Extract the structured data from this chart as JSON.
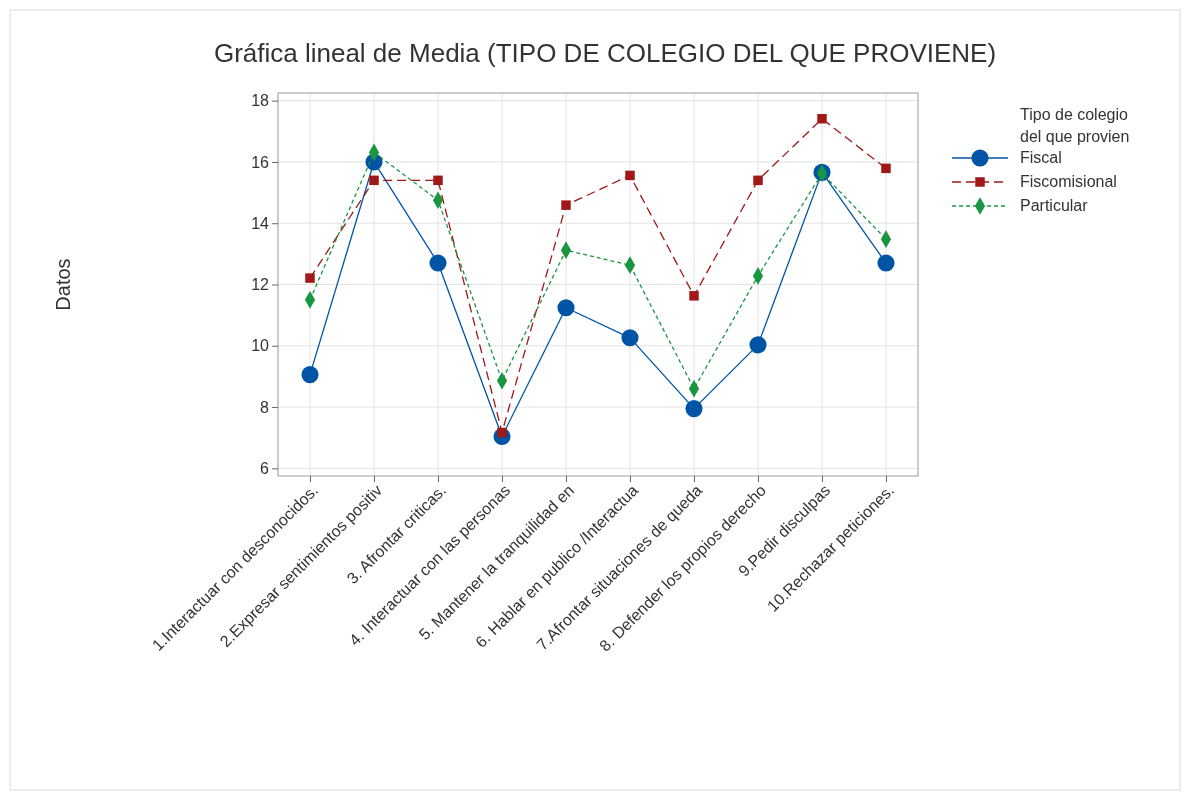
{
  "chart_data": {
    "type": "line",
    "title": "Gráfica lineal de Media (TIPO DE COLEGIO DEL QUE PROVIENE)",
    "ylabel": "Datos",
    "legend_title": "Tipo de colegio del que provien",
    "categories": [
      "1.Interactuar con desconocidos.",
      "2.Expresar sentimientos positiv",
      "3. Afrontar criticas.",
      "4. Interactuar con las personas",
      "5. Mantener la tranquilidad en",
      "6. Hablar en publico /Interactua",
      "7.Afrontar situaciones de queda",
      "8. Defender los propios derecho",
      "9.Pedir disculpas",
      "10.Rechazar peticiones."
    ],
    "series": [
      {
        "name": "Fiscal",
        "color": "#0054a6",
        "marker": "circle",
        "line_style": "solid",
        "values": [
          9.06,
          16.0,
          12.7,
          7.04,
          11.24,
          10.26,
          7.95,
          10.03,
          15.66,
          12.7
        ]
      },
      {
        "name": "Fiscomisional",
        "color": "#a01818",
        "marker": "square",
        "line_style": "dashed",
        "values": [
          12.21,
          15.4,
          15.4,
          7.17,
          14.59,
          15.56,
          11.63,
          15.4,
          17.41,
          15.79
        ]
      },
      {
        "name": "Particular",
        "color": "#1a9641",
        "marker": "diamond",
        "line_style": "dotted",
        "values": [
          11.5,
          16.31,
          14.75,
          8.86,
          13.12,
          12.63,
          8.6,
          12.28,
          15.63,
          13.48
        ]
      }
    ],
    "ylim": [
      5.75,
      18.25
    ],
    "yticks": [
      6,
      8,
      10,
      12,
      14,
      16,
      18
    ],
    "grid": true,
    "legend": "right"
  }
}
